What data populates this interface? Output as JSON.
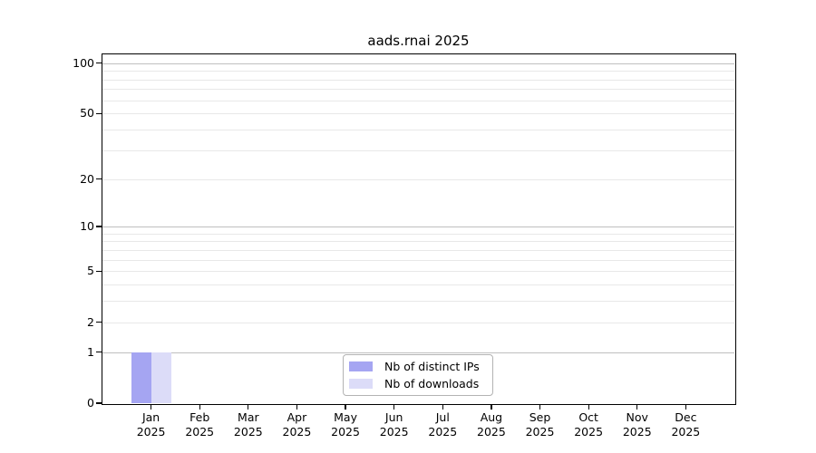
{
  "chart_data": {
    "type": "bar",
    "title": "aads.rnai 2025",
    "categories": [
      "Jan",
      "Feb",
      "Mar",
      "Apr",
      "May",
      "Jun",
      "Jul",
      "Aug",
      "Sep",
      "Oct",
      "Nov",
      "Dec"
    ],
    "x_axis_year": "2025",
    "series": [
      {
        "name": "Nb of distinct IPs",
        "color": "#a5a5f2",
        "values": [
          1,
          0,
          0,
          0,
          0,
          0,
          0,
          0,
          0,
          0,
          0,
          0
        ]
      },
      {
        "name": "Nb of downloads",
        "color": "#dcdcf8",
        "values": [
          1,
          0,
          0,
          0,
          0,
          0,
          0,
          0,
          0,
          0,
          0,
          0
        ]
      }
    ],
    "yscale": "log10(1+x)",
    "ylim": [
      0,
      113
    ],
    "y_tick_values": [
      0,
      1,
      2,
      5,
      10,
      20,
      50,
      100
    ],
    "grid": {
      "major_values": [
        1,
        10,
        100
      ],
      "minor_values": [
        2,
        3,
        4,
        5,
        6,
        7,
        8,
        9,
        20,
        30,
        40,
        50,
        60,
        70,
        80,
        90
      ],
      "major_color": "#bfbfbf",
      "minor_color": "#e8e8e8"
    },
    "legend": {
      "position": "bottom-center",
      "border_color": "#b3b3b3"
    },
    "axis_color": "#000000"
  }
}
